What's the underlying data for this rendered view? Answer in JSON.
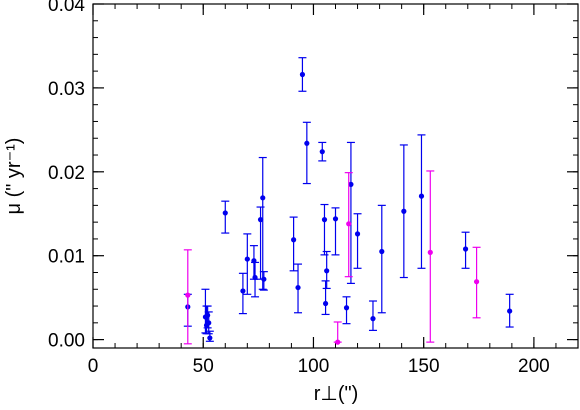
{
  "chart_data": {
    "type": "scatter",
    "xlabel": "r⊥(\")",
    "ylabel": "μ (\" yr⁻¹)",
    "xlim": [
      0,
      220
    ],
    "ylim": [
      -0.001,
      0.04
    ],
    "x_ticks": [
      0,
      50,
      100,
      150,
      200
    ],
    "y_ticks": [
      0.0,
      0.01,
      0.02,
      0.03,
      0.04
    ],
    "x_tick_labels": [
      "0",
      "50",
      "100",
      "150",
      "200"
    ],
    "y_tick_labels": [
      "0.00",
      "0.01",
      "0.02",
      "0.03",
      "0.04"
    ],
    "x_minor_step": 10,
    "y_minor_step": 0.002,
    "series": [
      {
        "color": "#0000ee",
        "points": [
          {
            "x": 43,
            "y": 0.0039,
            "lo": 0.0016,
            "hi": 0.0054
          },
          {
            "x": 51,
            "y": 0.0027,
            "lo": 0.0008,
            "hi": 0.006
          },
          {
            "x": 51.5,
            "y": 0.0017,
            "lo": 0.0007,
            "hi": 0.004
          },
          {
            "x": 52,
            "y": 0.0029,
            "lo": 0.0014,
            "hi": 0.004
          },
          {
            "x": 52.5,
            "y": 0.002,
            "lo": 0.0007,
            "hi": 0.0033
          },
          {
            "x": 53,
            "y": 0.0002,
            "lo": -0.0002,
            "hi": 0.001
          },
          {
            "x": 60,
            "y": 0.0151,
            "lo": 0.0127,
            "hi": 0.0165
          },
          {
            "x": 68,
            "y": 0.0058,
            "lo": 0.0031,
            "hi": 0.0079
          },
          {
            "x": 70,
            "y": 0.0096,
            "lo": 0.0054,
            "hi": 0.0126
          },
          {
            "x": 73,
            "y": 0.0094,
            "lo": 0.0072,
            "hi": 0.0112
          },
          {
            "x": 73.5,
            "y": 0.0074,
            "lo": 0.0051,
            "hi": 0.0092
          },
          {
            "x": 76,
            "y": 0.0143,
            "lo": 0.0072,
            "hi": 0.0158
          },
          {
            "x": 77,
            "y": 0.0169,
            "lo": 0.006,
            "hi": 0.0217
          },
          {
            "x": 77.5,
            "y": 0.0072,
            "lo": 0.0059,
            "hi": 0.0081
          },
          {
            "x": 91,
            "y": 0.0119,
            "lo": 0.0082,
            "hi": 0.0146
          },
          {
            "x": 93,
            "y": 0.0062,
            "lo": 0.0032,
            "hi": 0.009
          },
          {
            "x": 95,
            "y": 0.0316,
            "lo": 0.0296,
            "hi": 0.0336
          },
          {
            "x": 97,
            "y": 0.0234,
            "lo": 0.0186,
            "hi": 0.0259
          },
          {
            "x": 104,
            "y": 0.0224,
            "lo": 0.0213,
            "hi": 0.0235
          },
          {
            "x": 105,
            "y": 0.0143,
            "lo": 0.0101,
            "hi": 0.0161
          },
          {
            "x": 105.5,
            "y": 0.0043,
            "lo": 0.003,
            "hi": 0.007
          },
          {
            "x": 106,
            "y": 0.0082,
            "lo": 0.0061,
            "hi": 0.0105
          },
          {
            "x": 110,
            "y": 0.0144,
            "lo": 0.0101,
            "hi": 0.0157
          },
          {
            "x": 115,
            "y": 0.0038,
            "lo": 0.0019,
            "hi": 0.0051
          },
          {
            "x": 117,
            "y": 0.0185,
            "lo": 0.0067,
            "hi": 0.0235
          },
          {
            "x": 120,
            "y": 0.0126,
            "lo": 0.0085,
            "hi": 0.015
          },
          {
            "x": 127,
            "y": 0.0025,
            "lo": 0.0011,
            "hi": 0.0046
          },
          {
            "x": 131,
            "y": 0.0105,
            "lo": 0.0032,
            "hi": 0.016
          },
          {
            "x": 141,
            "y": 0.0153,
            "lo": 0.0074,
            "hi": 0.0232
          },
          {
            "x": 149,
            "y": 0.0171,
            "lo": 0.0085,
            "hi": 0.0244
          },
          {
            "x": 169,
            "y": 0.0108,
            "lo": 0.0085,
            "hi": 0.0128
          },
          {
            "x": 189,
            "y": 0.0034,
            "lo": 0.0015,
            "hi": 0.0054
          }
        ]
      },
      {
        "color": "#ee00ee",
        "points": [
          {
            "x": 43,
            "y": 0.0053,
            "lo": -0.0005,
            "hi": 0.0107
          },
          {
            "x": 111,
            "y": -0.0003,
            "lo": -0.0003,
            "hi": 0.0021
          },
          {
            "x": 116,
            "y": 0.0138,
            "lo": 0.0075,
            "hi": 0.0199
          },
          {
            "x": 153,
            "y": 0.0104,
            "lo": -0.0003,
            "hi": 0.0201
          },
          {
            "x": 174,
            "y": 0.0069,
            "lo": 0.0026,
            "hi": 0.011
          }
        ]
      }
    ]
  }
}
